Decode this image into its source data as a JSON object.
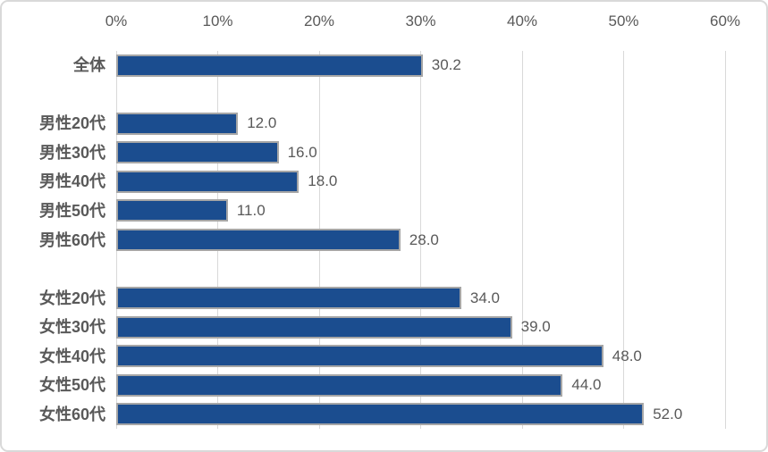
{
  "chart_data": {
    "type": "bar",
    "orientation": "horizontal",
    "title": "",
    "x_axis": {
      "position": "top",
      "min": 0,
      "max": 60,
      "ticks": [
        "0%",
        "10%",
        "20%",
        "30%",
        "40%",
        "50%",
        "60%"
      ],
      "grid": true
    },
    "categories": [
      "全体",
      "",
      "男性20代",
      "男性30代",
      "男性40代",
      "男性50代",
      "男性60代",
      "",
      "女性20代",
      "女性30代",
      "女性40代",
      "女性50代",
      "女性60代"
    ],
    "values": [
      30.2,
      null,
      12,
      16,
      18,
      11,
      28,
      null,
      34,
      39,
      48,
      44,
      52
    ],
    "value_labels": [
      "30.2",
      "",
      "12.0",
      "16.0",
      "18.0",
      "11.0",
      "28.0",
      "",
      "34.0",
      "39.0",
      "48.0",
      "44.0",
      "52.0"
    ],
    "legend": "none",
    "colors": {
      "bar_fill": "#1b4d8f",
      "bar_border": "#a6a6a6",
      "gridline": "#d9d9d9",
      "label_text": "#595959",
      "chart_border": "#d9d9d9",
      "background": "#ffffff"
    }
  }
}
